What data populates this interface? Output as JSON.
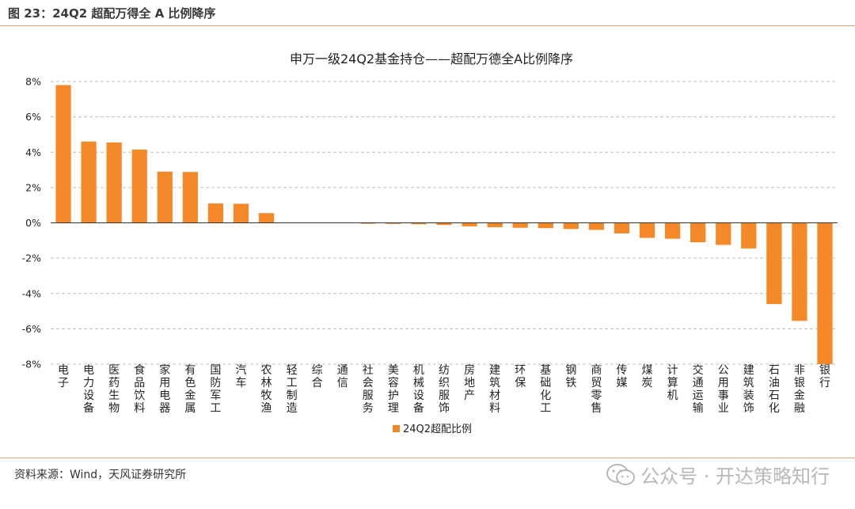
{
  "figure": {
    "caption": "图 23：24Q2 超配万得全 A 比例降序",
    "source": "资料来源：Wind，天风证券研究所",
    "watermark": "公众号 · 开达策略知行",
    "watermark_icon": "wechat-icon"
  },
  "chart_data": {
    "type": "bar",
    "title": "申万一级24Q2基金持仓——超配万德全A比例降序",
    "categories": [
      "电子",
      "电力设备",
      "医药生物",
      "食品饮料",
      "家用电器",
      "有色金属",
      "国防军工",
      "汽车",
      "农林牧渔",
      "轻工制造",
      "综合",
      "通信",
      "社会服务",
      "美容护理",
      "机械设备",
      "纺织服饰",
      "房地产",
      "建筑材料",
      "环保",
      "基础化工",
      "钢铁",
      "商贸零售",
      "传媒",
      "煤炭",
      "计算机",
      "交通运输",
      "公用事业",
      "建筑装饰",
      "石油石化",
      "非银金融",
      "银行"
    ],
    "series": [
      {
        "name": "24Q2超配比例",
        "color": "#f5892a",
        "values": [
          7.8,
          4.6,
          4.55,
          4.15,
          2.9,
          2.88,
          1.1,
          1.08,
          0.55,
          0.0,
          0.0,
          0.0,
          -0.05,
          -0.06,
          -0.08,
          -0.12,
          -0.2,
          -0.25,
          -0.28,
          -0.3,
          -0.35,
          -0.4,
          -0.6,
          -0.85,
          -0.9,
          -1.1,
          -1.25,
          -1.45,
          -4.6,
          -5.55,
          -8.0
        ]
      }
    ],
    "yticks": [
      "8%",
      "6%",
      "4%",
      "2%",
      "0%",
      "-2%",
      "-4%",
      "-6%",
      "-8%"
    ],
    "ylim": [
      -8,
      8
    ],
    "grid": true,
    "legend": "bottom-center"
  }
}
